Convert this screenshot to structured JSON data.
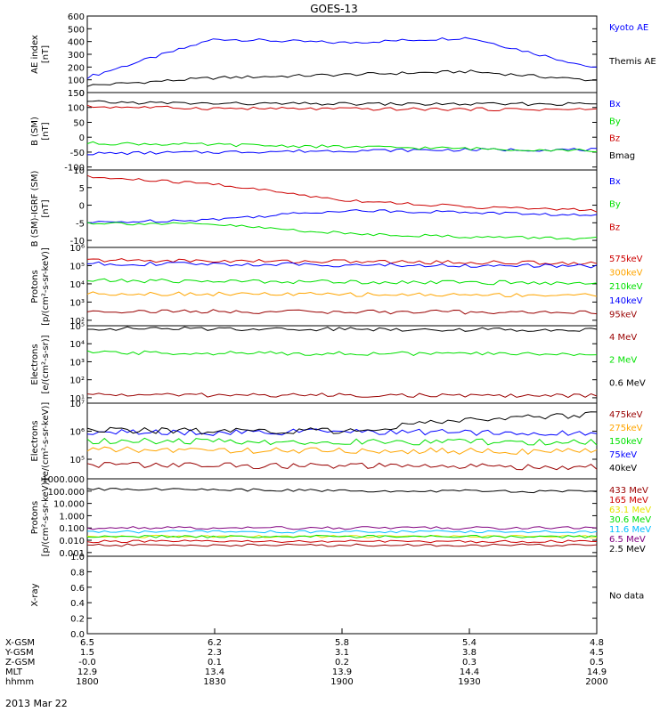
{
  "title": "GOES-13",
  "date_label": "2013 Mar 22",
  "colors": {
    "black": "#000000",
    "blue": "#0000ff",
    "red": "#cc0000",
    "darkred": "#990000",
    "green": "#00e000",
    "orange": "#ffa500",
    "yellow": "#e6e600",
    "cyan": "#00bfff",
    "purple": "#800080"
  },
  "x_axis": {
    "rows": [
      {
        "label": "X-GSM",
        "values": [
          "6.5",
          "6.2",
          "5.8",
          "5.4",
          "4.8"
        ]
      },
      {
        "label": "Y-GSM",
        "values": [
          "1.5",
          "2.3",
          "3.1",
          "3.8",
          "4.5"
        ]
      },
      {
        "label": "Z-GSM",
        "values": [
          "-0.0",
          "0.1",
          "0.2",
          "0.3",
          "0.5"
        ]
      },
      {
        "label": "MLT",
        "values": [
          "12.9",
          "13.4",
          "13.9",
          "14.4",
          "14.9"
        ]
      },
      {
        "label": "hhmm",
        "values": [
          "1800",
          "1830",
          "1900",
          "1930",
          "2000"
        ]
      }
    ]
  },
  "chart_data": [
    {
      "type": "line",
      "ylabel": [
        "AE index",
        "[nT]"
      ],
      "ylim": [
        0,
        600
      ],
      "scale": "linear",
      "yticks": [
        0,
        100,
        200,
        300,
        400,
        500,
        600
      ],
      "ticklabels": [
        "0",
        "100",
        "200",
        "300",
        "400",
        "500",
        "600"
      ],
      "x": [
        "1800",
        "1830",
        "1900",
        "1930",
        "2000"
      ],
      "series": [
        {
          "name": "Kyoto AE",
          "color": "blue",
          "values": [
            120,
            420,
            390,
            430,
            190
          ]
        },
        {
          "name": "Themis AE",
          "color": "black",
          "values": [
            55,
            115,
            140,
            165,
            95
          ]
        }
      ]
    },
    {
      "type": "line",
      "ylabel": [
        "B (SM)",
        "[nT]"
      ],
      "ylim": [
        -110,
        150
      ],
      "scale": "linear",
      "yticks": [
        -100,
        -50,
        0,
        50,
        100,
        150
      ],
      "ticklabels": [
        "-100",
        "-50",
        "0",
        "50",
        "100",
        "150"
      ],
      "x": [
        "1800",
        "1830",
        "1900",
        "1930",
        "2000"
      ],
      "series": [
        {
          "name": "Bx",
          "color": "blue",
          "values": [
            -55,
            -50,
            -45,
            -42,
            -42
          ]
        },
        {
          "name": "By",
          "color": "green",
          "values": [
            -20,
            -25,
            -32,
            -38,
            -45
          ]
        },
        {
          "name": "Bz",
          "color": "red",
          "values": [
            103,
            97,
            95,
            94,
            93
          ]
        },
        {
          "name": "Bmag",
          "color": "black",
          "values": [
            118,
            113,
            112,
            111,
            112
          ]
        }
      ]
    },
    {
      "type": "line",
      "ylabel": [
        "B (SM)-IGRF (SM)",
        "[nT]"
      ],
      "ylim": [
        -12,
        10
      ],
      "scale": "linear",
      "yticks": [
        -10,
        -5,
        0,
        5,
        10
      ],
      "ticklabels": [
        "-10",
        "-5",
        "0",
        "5",
        "10"
      ],
      "x": [
        "1800",
        "1830",
        "1900",
        "1930",
        "2000"
      ],
      "series": [
        {
          "name": "Bx",
          "color": "blue",
          "values": [
            -5,
            -4,
            -1.5,
            -2,
            -3
          ]
        },
        {
          "name": "By",
          "color": "green",
          "values": [
            -5,
            -5.5,
            -8,
            -9,
            -9.5
          ]
        },
        {
          "name": "Bz",
          "color": "red",
          "values": [
            8,
            6,
            1.5,
            -0.5,
            -1.5
          ]
        }
      ]
    },
    {
      "type": "line",
      "ylabel": [
        "Protons",
        "[p/(cm²-s-sr-keV)]"
      ],
      "ylim": [
        50,
        1000000
      ],
      "scale": "log",
      "yticks": [
        100,
        1000,
        10000,
        100000,
        1000000
      ],
      "ticklabels": [
        "10²",
        "10³",
        "10⁴",
        "10⁵",
        "10⁶"
      ],
      "x": [
        "1800",
        "1830",
        "1900",
        "1930",
        "2000"
      ],
      "series": [
        {
          "name": "575keV",
          "color": "red",
          "values": [
            200000,
            180000,
            170000,
            150000,
            140000
          ]
        },
        {
          "name": "300keV",
          "color": "orange",
          "values": [
            3000,
            2800,
            2600,
            2500,
            2400
          ]
        },
        {
          "name": "210keV",
          "color": "green",
          "values": [
            15000,
            14000,
            13000,
            12000,
            11000
          ]
        },
        {
          "name": "140keV",
          "color": "blue",
          "values": [
            130000,
            120000,
            110000,
            100000,
            95000
          ]
        },
        {
          "name": "95keV",
          "color": "darkred",
          "values": [
            320,
            300,
            290,
            280,
            270
          ]
        }
      ]
    },
    {
      "type": "line",
      "ylabel": [
        "Electrons",
        "[e/(cm²-s-sr)]"
      ],
      "ylim": [
        5,
        100000
      ],
      "scale": "log",
      "yticks": [
        10,
        100,
        1000,
        10000,
        100000
      ],
      "ticklabels": [
        "10¹",
        "10²",
        "10³",
        "10⁴",
        "10⁵"
      ],
      "x": [
        "1800",
        "1830",
        "1900",
        "1930",
        "2000"
      ],
      "series": [
        {
          "name": "4 MeV",
          "color": "darkred",
          "values": [
            15,
            14,
            14,
            13,
            13
          ]
        },
        {
          "name": "2 MeV",
          "color": "green",
          "values": [
            3200,
            3000,
            2900,
            2800,
            2700
          ]
        },
        {
          "name": "0.6 MeV",
          "color": "black",
          "values": [
            70000,
            68000,
            66000,
            62000,
            60000
          ]
        }
      ]
    },
    {
      "type": "line",
      "ylabel": [
        "Electrons",
        "[e/(cm²-s-sr-keV)]"
      ],
      "ylim": [
        20000,
        10000000
      ],
      "scale": "log",
      "yticks": [
        100000,
        1000000,
        10000000
      ],
      "ticklabels": [
        "10⁵",
        "10⁶",
        "10⁷"
      ],
      "x": [
        "1800",
        "1830",
        "1900",
        "1930",
        "2000"
      ],
      "series": [
        {
          "name": "475keV",
          "color": "darkred",
          "values": [
            65000,
            60000,
            57000,
            55000,
            52000
          ]
        },
        {
          "name": "275keV",
          "color": "orange",
          "values": [
            220000,
            210000,
            200000,
            195000,
            190000
          ]
        },
        {
          "name": "150keV",
          "color": "green",
          "values": [
            450000,
            430000,
            420000,
            410000,
            400000
          ]
        },
        {
          "name": "75keV",
          "color": "blue",
          "values": [
            900000,
            900000,
            950000,
            900000,
            850000
          ]
        },
        {
          "name": "40keV",
          "color": "black",
          "values": [
            1100000,
            1000000,
            1050000,
            2500000,
            4000000
          ]
        }
      ]
    },
    {
      "type": "line",
      "ylabel": [
        "Protons",
        "[p/(cm²-s-sr-keV)]"
      ],
      "ylim": [
        0.0005,
        1000
      ],
      "scale": "log",
      "yticks": [
        0.001,
        0.01,
        0.1,
        1,
        10,
        100,
        1000
      ],
      "ticklabels": [
        "0.001",
        "0.010",
        "0.100",
        "1.000",
        "10.000",
        "100.000",
        "1000.000"
      ],
      "x": [
        "1800",
        "1830",
        "1900",
        "1930",
        "2000"
      ],
      "series": [
        {
          "name": "433 MeV",
          "color": "darkred",
          "values": [
            0.004,
            0.004,
            0.004,
            0.004,
            0.004
          ]
        },
        {
          "name": "165 MeV",
          "color": "red",
          "values": [
            0.008,
            0.008,
            0.008,
            0.008,
            0.008
          ]
        },
        {
          "name": "63.1 MeV",
          "color": "yellow",
          "values": [
            0.02,
            0.02,
            0.02,
            0.02,
            0.02
          ]
        },
        {
          "name": "30.6 MeV",
          "color": "green",
          "values": [
            0.02,
            0.02,
            0.02,
            0.02,
            0.02
          ]
        },
        {
          "name": "11.6 MeV",
          "color": "cyan",
          "values": [
            0.05,
            0.05,
            0.05,
            0.05,
            0.05
          ]
        },
        {
          "name": "6.5 MeV",
          "color": "purple",
          "values": [
            0.1,
            0.1,
            0.1,
            0.1,
            0.1
          ]
        },
        {
          "name": "2.5 MeV",
          "color": "black",
          "values": [
            150,
            130,
            110,
            100,
            90
          ]
        }
      ]
    },
    {
      "type": "line",
      "ylabel": [
        "X-ray",
        ""
      ],
      "ylim": [
        0,
        1
      ],
      "scale": "linear",
      "yticks": [
        0,
        0.2,
        0.4,
        0.6,
        0.8,
        1.0
      ],
      "ticklabels": [
        "0.0",
        "0.2",
        "0.4",
        "0.6",
        "0.8",
        "1.0"
      ],
      "x": [
        "1800",
        "1830",
        "1900",
        "1930",
        "2000"
      ],
      "series": [],
      "note": "No data"
    }
  ]
}
